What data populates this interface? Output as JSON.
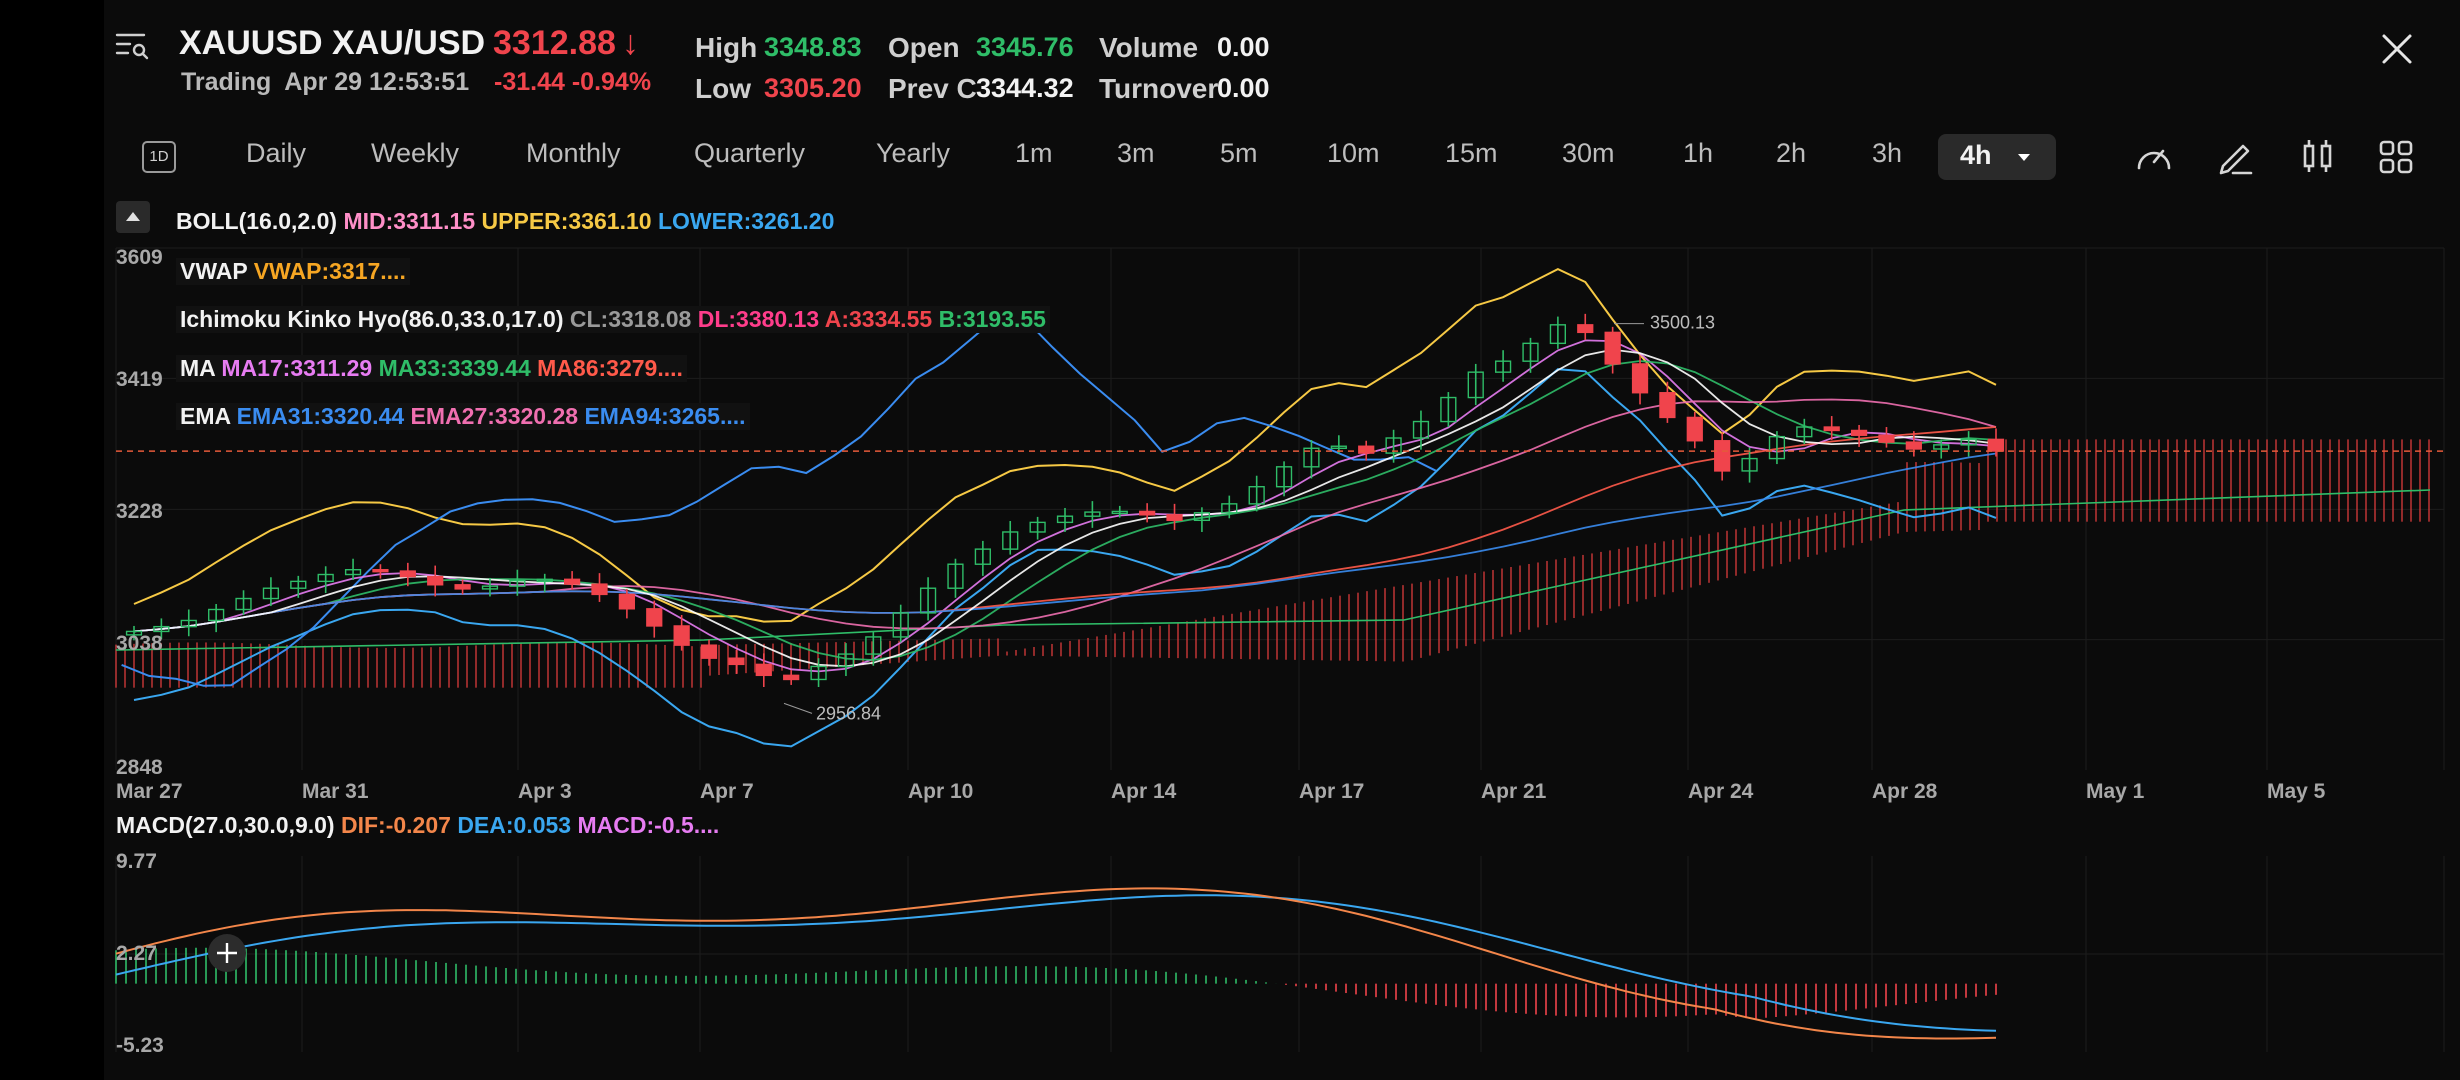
{
  "header": {
    "symbol": "XAUUSD",
    "name": "XAU/USD",
    "price": "3312.88",
    "price_arrow": "↓",
    "status": "Trading",
    "datetime": "Apr 29 12:53:51",
    "change": "-31.44",
    "change_pct": "-0.94%",
    "stats": {
      "high_label": "High",
      "high": "3348.83",
      "low_label": "Low",
      "low": "3305.20",
      "open_label": "Open",
      "open": "3345.76",
      "prevc_label": "Prev C",
      "prevc": "3344.32",
      "volume_label": "Volume",
      "volume": "0.00",
      "turnover_label": "Turnover",
      "turnover": "0.00"
    }
  },
  "timeframes": {
    "badge": "1D",
    "items": [
      "Daily",
      "Weekly",
      "Monthly",
      "Quarterly",
      "Yearly",
      "1m",
      "3m",
      "5m",
      "10m",
      "15m",
      "30m",
      "1h",
      "2h",
      "3h"
    ],
    "active": "4h"
  },
  "toolbar_icons": [
    "speedometer-icon",
    "pencil-icon",
    "candle-style-icon",
    "grid-layout-icon"
  ],
  "indicators": {
    "boll": {
      "name": "BOLL(16.0,2.0)",
      "mid": "MID:3311.15",
      "upper": "UPPER:3361.10",
      "lower": "LOWER:3261.20"
    },
    "vwap": {
      "name": "VWAP",
      "value": "VWAP:3317...."
    },
    "ichimoku": {
      "name": "Ichimoku Kinko Hyo(86.0,33.0,17.0)",
      "cl": "CL:3318.08",
      "dl": "DL:3380.13",
      "a": "A:3334.55",
      "b": "B:3193.55"
    },
    "ma": {
      "name": "MA",
      "ma17": "MA17:3311.29",
      "ma33": "MA33:3339.44",
      "ma86": "MA86:3279...."
    },
    "ema": {
      "name": "EMA",
      "ema31": "EMA31:3320.44",
      "ema27": "EMA27:3320.28",
      "ema94": "EMA94:3265...."
    },
    "macd": {
      "name": "MACD(27.0,30.0,9.0)",
      "dif": "DIF:-0.207",
      "dea": "DEA:0.053",
      "macd": "MACD:-0.5...."
    }
  },
  "colors": {
    "up": "#2fbd68",
    "down": "#f0444c",
    "boll_mid": "#ff8fc8",
    "boll_upper": "#f6c945",
    "boll_lower": "#3aa7f0",
    "vwap": "#f6a623",
    "ichimoku_cl": "#9a9a9a",
    "ichimoku_dl": "#ff3d8b",
    "ichimoku_a": "#f0444c",
    "ichimoku_b": "#2fbd68",
    "ma17": "#e77cf2",
    "ma33": "#2fbd68",
    "ma86": "#ff5a4a",
    "ema31": "#3a8cf0",
    "ema27": "#f06fb0",
    "ema94": "#3a8cf0",
    "macd_dif": "#f3864a",
    "macd_dea": "#3aa7f0",
    "macd_hist": "#e77cf2"
  },
  "chart_data": [
    {
      "type": "candlestick",
      "title": "",
      "y_ticks": [
        "3609",
        "3419",
        "3228",
        "3038",
        "2848"
      ],
      "ylim": [
        2848,
        3609
      ],
      "x_ticks": [
        "Mar 27",
        "Mar 31",
        "Apr 3",
        "Apr 7",
        "Apr 10",
        "Apr 14",
        "Apr 17",
        "Apr 21",
        "Apr 24",
        "Apr 28",
        "May 1",
        "May 5"
      ],
      "annotations": {
        "high": "3500.13",
        "low": "2956.84"
      },
      "last_price": 3312.88,
      "close_series": [
        3050,
        3057,
        3066,
        3082,
        3098,
        3113,
        3123,
        3133,
        3140,
        3138,
        3130,
        3118,
        3112,
        3116,
        3124,
        3126,
        3119,
        3104,
        3083,
        3058,
        3030,
        3011,
        3002,
        2986,
        2980,
        2999,
        3017,
        3042,
        3077,
        3113,
        3148,
        3170,
        3195,
        3209,
        3218,
        3224,
        3225,
        3220,
        3212,
        3223,
        3236,
        3261,
        3290,
        3317,
        3320,
        3310,
        3332,
        3356,
        3391,
        3428,
        3444,
        3470,
        3497,
        3486,
        3440,
        3398,
        3362,
        3328,
        3284,
        3302,
        3334,
        3348,
        3343,
        3336,
        3326,
        3316,
        3322,
        3330,
        3313
      ]
    },
    {
      "type": "macd",
      "y_ticks": [
        "9.77",
        "2.27",
        "-5.23"
      ],
      "ylim": [
        -5.23,
        9.77
      ]
    }
  ]
}
